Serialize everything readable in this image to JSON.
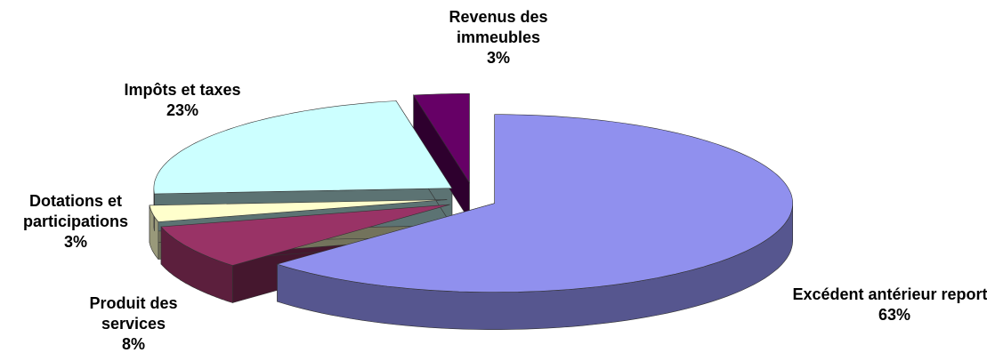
{
  "chart_data": {
    "type": "pie",
    "categories": [
      "Excédent antérieur reporté",
      "Produit des services",
      "Dotations et participations",
      "Impôts et taxes",
      "Revenus des immeubles"
    ],
    "values": [
      63,
      8,
      3,
      23,
      3
    ],
    "value_labels": [
      "63%",
      "8%",
      "3%",
      "23%",
      "3%"
    ],
    "colors": [
      "#9090ee",
      "#993366",
      "#ffffcc",
      "#ccffff",
      "#660066"
    ]
  }
}
